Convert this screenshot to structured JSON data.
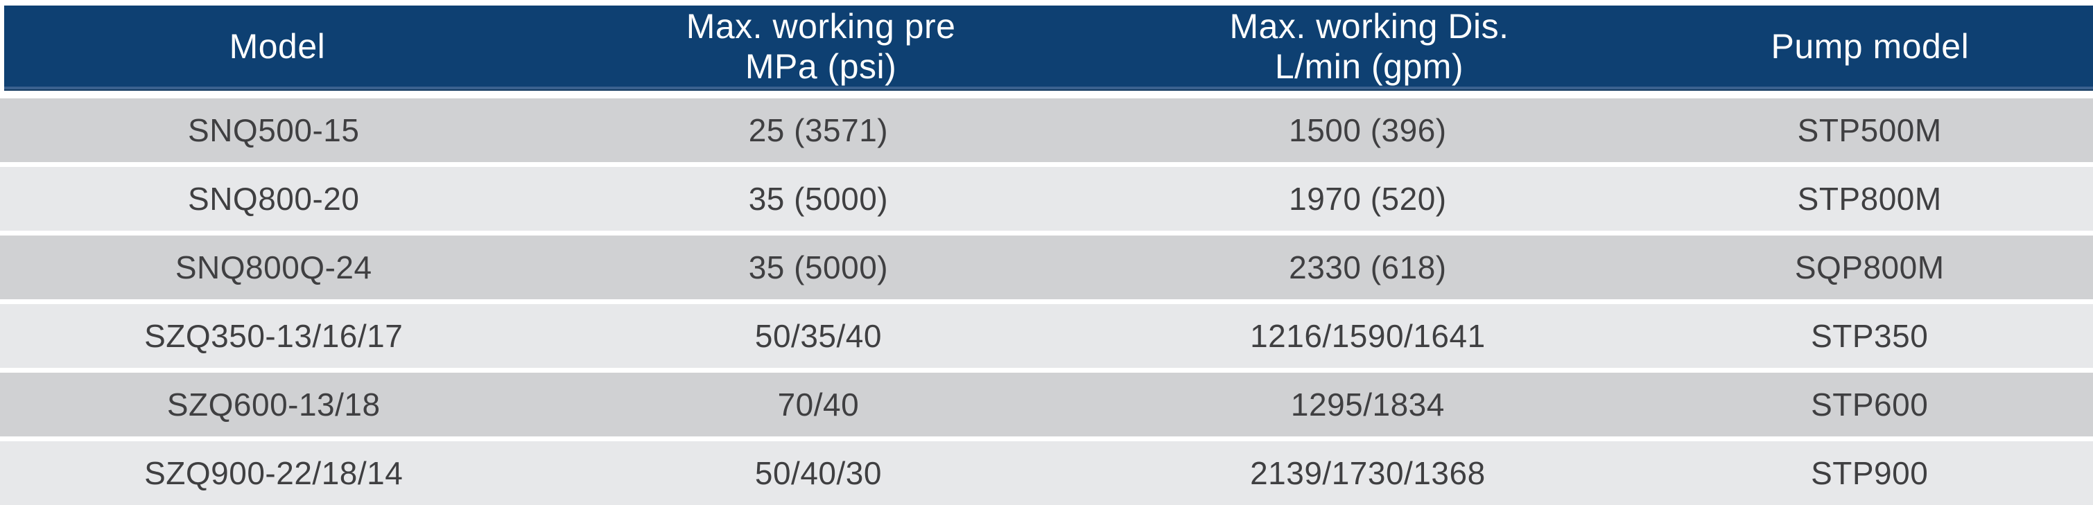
{
  "chart_data": {
    "type": "table",
    "title": "Pump specification table",
    "columns": [
      "Model",
      "Max. working pre\nMPa (psi)",
      "Max. working Dis.\nL/min (gpm)",
      "Pump model"
    ],
    "rows": [
      [
        "SNQ500-15",
        "25 (3571)",
        "1500 (396)",
        "STP500M"
      ],
      [
        "SNQ800-20",
        "35 (5000)",
        "1970 (520)",
        "STP800M"
      ],
      [
        "SNQ800Q-24",
        "35 (5000)",
        "2330 (618)",
        "SQP800M"
      ],
      [
        "SZQ350-13/16/17",
        "50/35/40",
        "1216/1590/1641",
        "STP350"
      ],
      [
        "SZQ600-13/18",
        "70/40",
        "1295/1834",
        "STP600"
      ],
      [
        "SZQ900-22/18/14",
        "50/40/30",
        "2139/1730/1368",
        "STP900"
      ]
    ]
  },
  "colors": {
    "header_bg": "#0e4072",
    "header_text": "#ffffff",
    "header_accent_line": "#3b618f",
    "header_accent_dark": "#12395f",
    "row_dark_bg": "#d0d1d3",
    "row_light_bg": "#e7e8ea",
    "cell_text": "#3f3f41",
    "page_bg": "#ffffff"
  }
}
